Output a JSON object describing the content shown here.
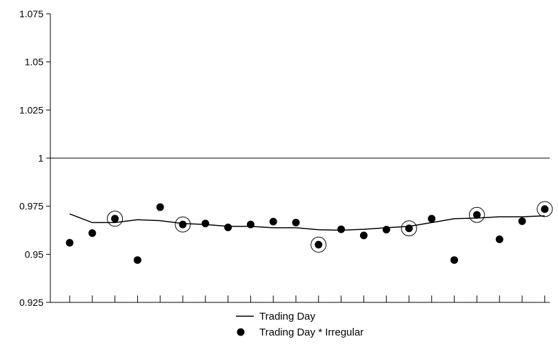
{
  "chart_data": {
    "type": "line",
    "title": "",
    "xlabel": "",
    "ylabel": "",
    "ylim": [
      0.925,
      1.075
    ],
    "yticks": [
      "1.075",
      "1.05",
      "1.025",
      "1",
      "0.975",
      "0.95",
      "0.925"
    ],
    "yticks_values": [
      1.075,
      1.05,
      1.025,
      1.0,
      0.975,
      0.95,
      0.925
    ],
    "reference_line": 1.0,
    "x": [
      1,
      2,
      3,
      4,
      5,
      6,
      7,
      8,
      9,
      10,
      11,
      12,
      13,
      14,
      15,
      16,
      17,
      18,
      19,
      20,
      21,
      22
    ],
    "series": [
      {
        "name": "Trading Day",
        "style": "line",
        "values": [
          0.971,
          0.9665,
          0.9665,
          0.968,
          0.9675,
          0.966,
          0.9655,
          0.9645,
          0.9645,
          0.9638,
          0.9638,
          0.9628,
          0.9625,
          0.963,
          0.9638,
          0.9645,
          0.9665,
          0.9685,
          0.9688,
          0.9695,
          0.9695,
          0.97
        ]
      },
      {
        "name": "Trading Day * Irregular",
        "style": "points",
        "values": [
          0.956,
          0.961,
          0.9685,
          0.947,
          0.9745,
          0.9655,
          0.966,
          0.964,
          0.9655,
          0.967,
          0.9665,
          0.955,
          0.963,
          0.9598,
          0.9628,
          0.9635,
          0.9685,
          0.947,
          0.9705,
          0.9578,
          0.9672,
          0.9735
        ],
        "circled_indices": [
          2,
          5,
          11,
          15,
          18,
          21
        ]
      }
    ],
    "legend_position": "bottom-center",
    "grid": false,
    "colors": {
      "line": "#000000",
      "points": "#000000",
      "axis": "#000000"
    }
  }
}
